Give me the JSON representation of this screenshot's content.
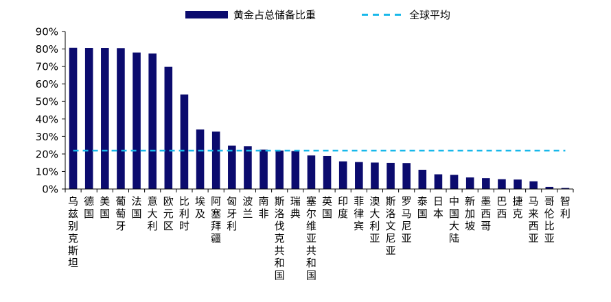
{
  "chart_data": {
    "type": "bar",
    "categories": [
      "乌兹别克斯坦",
      "德国",
      "美国",
      "葡萄牙",
      "法国",
      "意大利",
      "欧元区",
      "比利时",
      "埃及",
      "阿塞拜疆",
      "匈牙利",
      "波兰",
      "南非",
      "斯洛伐克共和国",
      "瑞典",
      "塞尔维亚共和国",
      "英国",
      "印度",
      "菲律宾",
      "澳大利亚",
      "斯洛文尼亚",
      "罗马尼亚",
      "泰国",
      "日本",
      "中国大陆",
      "新加坡",
      "墨西哥",
      "巴西",
      "捷克",
      "马来西亚",
      "哥伦比亚",
      "智利"
    ],
    "series": [
      {
        "name": "黄金占总储备比重",
        "type": "bar",
        "color": "#0b0b6e",
        "values": [
          80.7,
          80.6,
          80.6,
          80.5,
          78.0,
          77.4,
          69.8,
          54.0,
          34.0,
          32.8,
          24.8,
          24.5,
          22.5,
          22.0,
          21.7,
          19.2,
          18.8,
          15.8,
          15.4,
          15.1,
          14.9,
          14.8,
          11.0,
          8.4,
          8.1,
          6.6,
          6.2,
          5.6,
          5.4,
          4.4,
          1.2,
          0.6
        ]
      },
      {
        "name": "全球平均",
        "type": "line",
        "style": "dashed",
        "color": "#18b8ea",
        "value": 21.9
      }
    ],
    "ylim": [
      0,
      90
    ],
    "ytick_step": 10,
    "ytick_format": "percent",
    "legend": "top",
    "grid": false
  }
}
